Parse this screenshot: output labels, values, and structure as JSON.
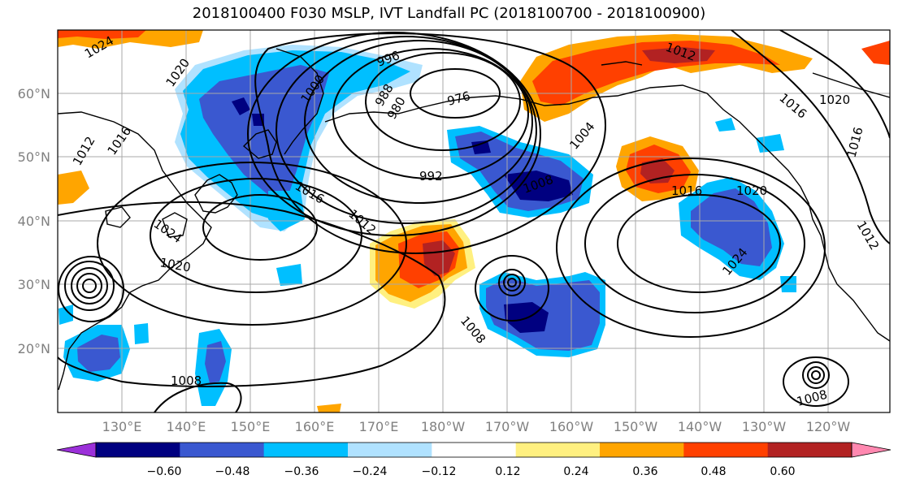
{
  "title": "2018100400 F030 MSLP, IVT Landfall PC (2018100700 - 2018100900)",
  "map": {
    "lat_ticks": [
      "60°N",
      "50°N",
      "40°N",
      "30°N",
      "20°N"
    ],
    "lon_ticks": [
      "130°E",
      "140°E",
      "150°E",
      "160°E",
      "170°E",
      "180°W",
      "170°W",
      "160°W",
      "150°W",
      "140°W",
      "130°W",
      "120°W"
    ],
    "isobar_labels": [
      "1024",
      "1020",
      "1000",
      "996",
      "988",
      "980",
      "976",
      "1012",
      "1016",
      "992",
      "1004",
      "1016",
      "1020",
      "1016",
      "1012",
      "1020",
      "1008",
      "1008",
      "1016",
      "1020",
      "1024",
      "1012",
      "1008",
      "1008",
      "1016",
      "1024",
      "1012"
    ],
    "colors": {
      "neg_060": "#9b30d9",
      "neg_048": "#000080",
      "neg_036": "#3a58d0",
      "neg_024": "#00bfff",
      "neg_012": "#b0e2ff",
      "pos_012": "#fff080",
      "pos_024": "#ffa500",
      "pos_036": "#ff4000",
      "pos_048": "#b22222",
      "pos_060": "#ff88b0"
    }
  },
  "colorbar": {
    "labels": [
      "−0.60",
      "−0.48",
      "−0.36",
      "−0.24",
      "−0.12",
      "0.12",
      "0.24",
      "0.36",
      "0.48",
      "0.60"
    ],
    "colors": [
      "#9b30d9",
      "#000080",
      "#3a58d0",
      "#00bfff",
      "#b0e2ff",
      "#ffffff",
      "#fff080",
      "#ffa500",
      "#ff4000",
      "#b22222",
      "#ff88b0"
    ]
  }
}
